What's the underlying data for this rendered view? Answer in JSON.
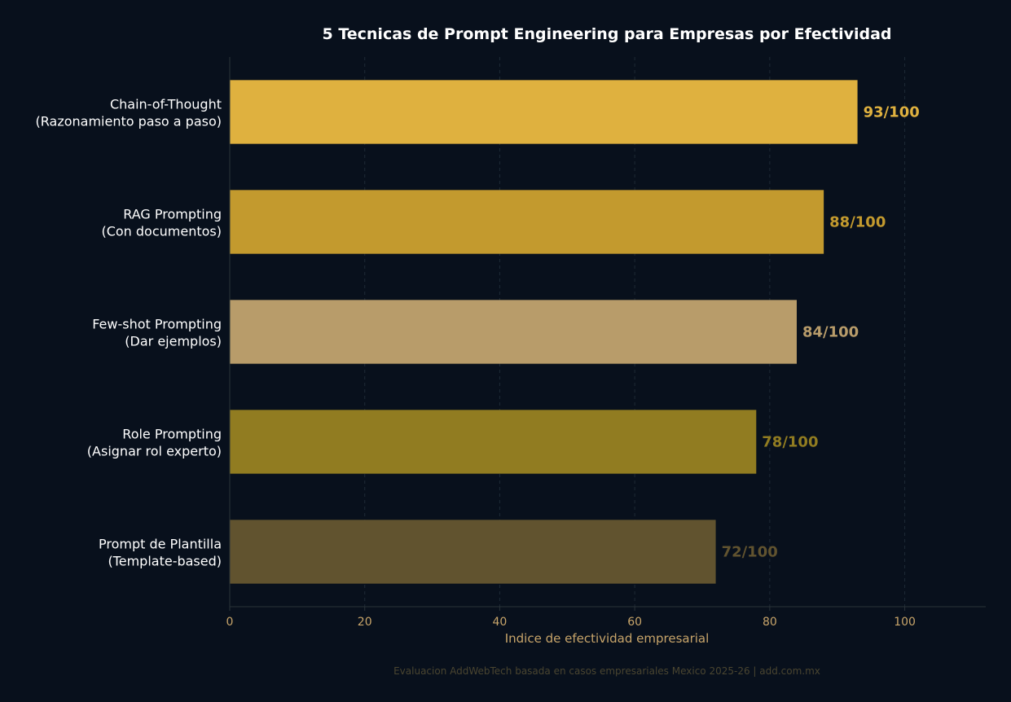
{
  "chart_data": {
    "type": "bar",
    "orientation": "horizontal",
    "title": "5 Tecnicas de Prompt Engineering para Empresas por Efectividad",
    "xlabel": "Indice de efectividad empresarial",
    "ylabel": "",
    "xlim": [
      0,
      112
    ],
    "xticks": [
      0,
      20,
      40,
      60,
      80,
      100
    ],
    "grid": "x-dashed",
    "categories": [
      [
        "Chain-of-Thought",
        "(Razonamiento paso a paso)"
      ],
      [
        "RAG Prompting",
        "(Con documentos)"
      ],
      [
        "Few-shot Prompting",
        "(Dar ejemplos)"
      ],
      [
        "Role Prompting",
        "(Asignar rol experto)"
      ],
      [
        "Prompt de Plantilla",
        "(Template-based)"
      ]
    ],
    "values": [
      93,
      88,
      84,
      78,
      72
    ],
    "value_labels": [
      "93/100",
      "88/100",
      "84/100",
      "78/100",
      "72/100"
    ],
    "colors": [
      "#dfb13f",
      "#c39a2e",
      "#b89c6a",
      "#917c21",
      "#61532f"
    ],
    "footnote": "Evaluacion AddWebTech basada en casos empresariales Mexico 2025-26 | add.com.mx"
  },
  "theme": {
    "background": "#08101c",
    "title_color": "#ffffff",
    "label_color": "#ffffff",
    "tick_color": "#c8a56a",
    "grid_color": "#1e2a36",
    "footnote_color": "#4a4530"
  }
}
